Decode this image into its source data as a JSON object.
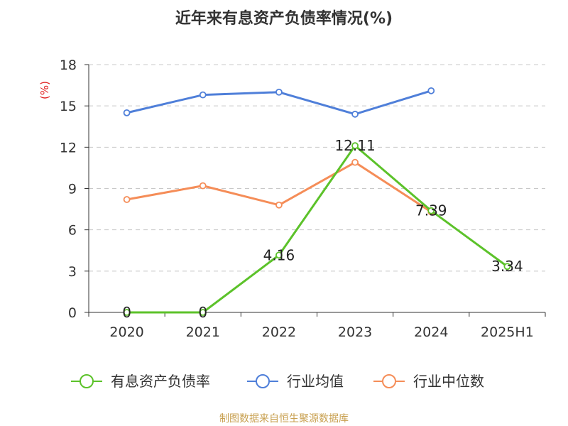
{
  "chart_data": {
    "type": "line",
    "title": "近年来有息资产负债率情况(%)",
    "unit_label": "(%)",
    "categories": [
      "2020",
      "2021",
      "2022",
      "2023",
      "2024",
      "2025H1"
    ],
    "ylim": [
      0,
      18
    ],
    "yticks": [
      0,
      3,
      6,
      9,
      12,
      15,
      18
    ],
    "grid": true,
    "legend_position": "bottom",
    "series": [
      {
        "name": "有息资产负债率",
        "color": "#5cc22a",
        "values": [
          0,
          0,
          4.16,
          12.11,
          7.39,
          3.34
        ],
        "labels": [
          "0",
          "0",
          "4.16",
          "12.11",
          "7.39",
          "3.34"
        ]
      },
      {
        "name": "行业均值",
        "color": "#4f7fd9",
        "values": [
          14.5,
          15.8,
          16.0,
          14.4,
          16.1,
          null
        ]
      },
      {
        "name": "行业中位数",
        "color": "#f58d58",
        "values": [
          8.2,
          9.2,
          7.8,
          10.9,
          7.3,
          null
        ]
      }
    ],
    "source": "制图数据来自恒生聚源数据库"
  }
}
